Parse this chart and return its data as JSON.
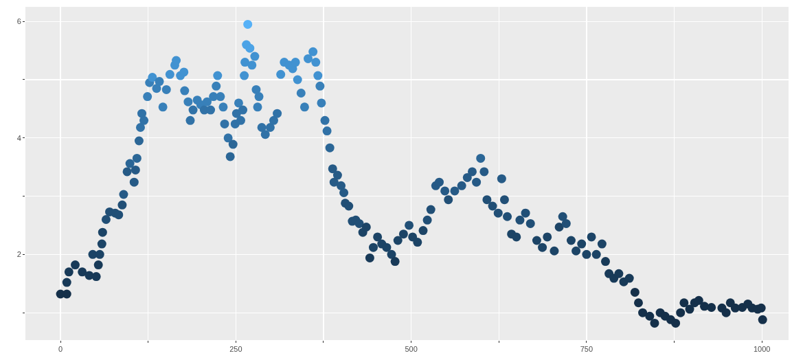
{
  "chart_data": {
    "type": "scatter",
    "marker": "circle",
    "grid": true,
    "xlim": [
      -50,
      1038
    ],
    "ylim": [
      0.53,
      6.25
    ],
    "xticks": [
      0,
      {
        "value": 125,
        "label": null
      },
      250,
      {
        "value": 375,
        "label": null
      },
      500,
      {
        "value": 625,
        "label": null
      },
      750,
      {
        "value": 875,
        "label": null
      },
      1000
    ],
    "yticks": [
      {
        "value": 1,
        "label": null
      },
      2,
      {
        "value": 3,
        "label": null
      },
      4,
      {
        "value": 5,
        "label": null
      },
      6
    ],
    "x": [
      0,
      9,
      9,
      12,
      21,
      31,
      41,
      51,
      46,
      56,
      54,
      59,
      60,
      65,
      70,
      78,
      83,
      88,
      90,
      95,
      99,
      105,
      107,
      109,
      112,
      114,
      116,
      119,
      124,
      127,
      131,
      137,
      141,
      146,
      151,
      156,
      163,
      165,
      171,
      176,
      177,
      182,
      185,
      189,
      195,
      200,
      205,
      209,
      214,
      218,
      222,
      224,
      228,
      232,
      234,
      239,
      242,
      246,
      249,
      251,
      254,
      257,
      260,
      262,
      263,
      265,
      267,
      270,
      273,
      277,
      279,
      281,
      283,
      287,
      292,
      299,
      304,
      309,
      314,
      319,
      326,
      331,
      335,
      338,
      343,
      348,
      353,
      360,
      364,
      367,
      370,
      372,
      377,
      380,
      384,
      388,
      390,
      395,
      400,
      404,
      406,
      411,
      416,
      421,
      426,
      431,
      436,
      441,
      446,
      452,
      458,
      465,
      472,
      477,
      481,
      489,
      497,
      502,
      509,
      517,
      523,
      528,
      535,
      540,
      548,
      553,
      562,
      572,
      580,
      587,
      593,
      599,
      604,
      608,
      616,
      624,
      629,
      633,
      637,
      643,
      650,
      655,
      663,
      670,
      679,
      687,
      694,
      704,
      711,
      716,
      721,
      728,
      735,
      743,
      750,
      757,
      764,
      772,
      777,
      782,
      789,
      796,
      803,
      811,
      819,
      824,
      830,
      840,
      847,
      855,
      862,
      870,
      877,
      884,
      889,
      897,
      904,
      910,
      918,
      928,
      943,
      949,
      955,
      962,
      972,
      980,
      986,
      994,
      999,
      1001
    ],
    "values": [
      1.32,
      1.32,
      1.52,
      1.7,
      1.82,
      1.7,
      1.64,
      1.62,
      2.0,
      2.0,
      1.82,
      2.18,
      2.38,
      2.6,
      2.73,
      2.71,
      2.68,
      2.85,
      3.03,
      3.42,
      3.56,
      3.24,
      3.45,
      3.65,
      3.95,
      4.18,
      4.42,
      4.3,
      4.71,
      4.95,
      5.04,
      4.85,
      4.97,
      4.53,
      4.83,
      5.09,
      5.25,
      5.33,
      5.07,
      5.13,
      4.81,
      4.62,
      4.3,
      4.48,
      4.65,
      4.57,
      4.48,
      4.62,
      4.48,
      4.71,
      4.89,
      5.07,
      4.71,
      4.53,
      4.24,
      4.0,
      3.68,
      3.89,
      4.24,
      4.42,
      4.6,
      4.3,
      4.48,
      5.07,
      5.3,
      5.6,
      5.95,
      5.54,
      5.25,
      5.4,
      4.83,
      4.53,
      4.71,
      4.18,
      4.06,
      4.18,
      4.3,
      4.42,
      5.09,
      5.3,
      5.25,
      5.19,
      5.3,
      5.0,
      4.77,
      4.53,
      5.36,
      5.48,
      5.3,
      5.07,
      4.89,
      4.6,
      4.3,
      4.12,
      3.83,
      3.47,
      3.24,
      3.36,
      3.18,
      3.06,
      2.88,
      2.83,
      2.57,
      2.59,
      2.53,
      2.38,
      2.47,
      1.94,
      2.12,
      2.3,
      2.18,
      2.12,
      2.0,
      1.88,
      2.24,
      2.35,
      2.5,
      2.3,
      2.21,
      2.41,
      2.59,
      2.77,
      3.18,
      3.24,
      3.09,
      2.94,
      3.09,
      3.18,
      3.32,
      3.42,
      3.24,
      3.65,
      3.42,
      2.94,
      2.83,
      2.71,
      3.3,
      2.94,
      2.65,
      2.35,
      2.3,
      2.59,
      2.71,
      2.53,
      2.24,
      2.12,
      2.3,
      2.06,
      2.47,
      2.65,
      2.53,
      2.24,
      2.06,
      2.18,
      2.0,
      2.3,
      2.0,
      2.18,
      1.88,
      1.67,
      1.59,
      1.67,
      1.53,
      1.59,
      1.35,
      1.17,
      1.0,
      0.94,
      0.82,
      1.0,
      0.94,
      0.88,
      0.82,
      1.0,
      1.17,
      1.06,
      1.17,
      1.21,
      1.11,
      1.09,
      1.08,
      1.0,
      1.17,
      1.08,
      1.09,
      1.15,
      1.08,
      1.06,
      1.08,
      0.88
    ],
    "colors": [
      "#15304a",
      "#15304a",
      "#183a58",
      "#183a58",
      "#183a58",
      "#183a58",
      "#183a58",
      "#183a58",
      "#1c4466",
      "#1c4466",
      "#183a58",
      "#1c4466",
      "#1c4466",
      "#214f76",
      "#214f76",
      "#214f76",
      "#214f76",
      "#214f76",
      "#265a86",
      "#265a86",
      "#2b6696",
      "#265a86",
      "#265a86",
      "#2b6696",
      "#2b6696",
      "#3172a7",
      "#3172a7",
      "#3172a7",
      "#3880b9",
      "#3880b9",
      "#4192d1",
      "#3880b9",
      "#3880b9",
      "#3880b9",
      "#3880b9",
      "#4192d1",
      "#4192d1",
      "#4192d1",
      "#4192d1",
      "#4192d1",
      "#3880b9",
      "#3880b9",
      "#3172a7",
      "#3172a7",
      "#3880b9",
      "#3880b9",
      "#3172a7",
      "#3880b9",
      "#3172a7",
      "#3880b9",
      "#3880b9",
      "#4192d1",
      "#3880b9",
      "#3880b9",
      "#3172a7",
      "#3172a7",
      "#2b6696",
      "#2b6696",
      "#3172a7",
      "#3172a7",
      "#3880b9",
      "#3172a7",
      "#3172a7",
      "#4192d1",
      "#4192d1",
      "#4ca3e6",
      "#56b1f7",
      "#4ca3e6",
      "#4192d1",
      "#4192d1",
      "#3880b9",
      "#3880b9",
      "#3880b9",
      "#3172a7",
      "#3172a7",
      "#3172a7",
      "#3172a7",
      "#3172a7",
      "#4192d1",
      "#4192d1",
      "#4192d1",
      "#4192d1",
      "#4192d1",
      "#4192d1",
      "#3880b9",
      "#3880b9",
      "#4192d1",
      "#4192d1",
      "#4192d1",
      "#4192d1",
      "#3880b9",
      "#3880b9",
      "#3172a7",
      "#3172a7",
      "#2b6696",
      "#265a86",
      "#265a86",
      "#265a86",
      "#265a86",
      "#265a86",
      "#214f76",
      "#214f76",
      "#214f76",
      "#214f76",
      "#214f76",
      "#1c4466",
      "#1c4466",
      "#183a58",
      "#1c4466",
      "#1c4466",
      "#1c4466",
      "#1c4466",
      "#1c4466",
      "#183a58",
      "#1c4466",
      "#1c4466",
      "#214f76",
      "#1c4466",
      "#1c4466",
      "#1c4466",
      "#214f76",
      "#214f76",
      "#265a86",
      "#265a86",
      "#265a86",
      "#214f76",
      "#265a86",
      "#265a86",
      "#265a86",
      "#265a86",
      "#265a86",
      "#2b6696",
      "#265a86",
      "#214f76",
      "#214f76",
      "#214f76",
      "#265a86",
      "#214f76",
      "#214f76",
      "#1c4466",
      "#1c4466",
      "#214f76",
      "#214f76",
      "#214f76",
      "#1c4466",
      "#1c4466",
      "#1c4466",
      "#1c4466",
      "#1c4466",
      "#214f76",
      "#214f76",
      "#1c4466",
      "#1c4466",
      "#1c4466",
      "#1c4466",
      "#1c4466",
      "#1c4466",
      "#1c4466",
      "#183a58",
      "#183a58",
      "#183a58",
      "#183a58",
      "#183a58",
      "#183a58",
      "#15304a",
      "#15304a",
      "#15304a",
      "#15304a",
      "#15304a",
      "#15304a",
      "#15304a",
      "#15304a",
      "#15304a",
      "#15304a",
      "#15304a",
      "#15304a",
      "#15304a",
      "#15304a",
      "#15304a",
      "#15304a",
      "#15304a",
      "#15304a",
      "#15304a",
      "#15304a",
      "#15304a",
      "#15304a",
      "#15304a",
      "#15304a",
      "#15304a",
      "#15304a"
    ]
  }
}
